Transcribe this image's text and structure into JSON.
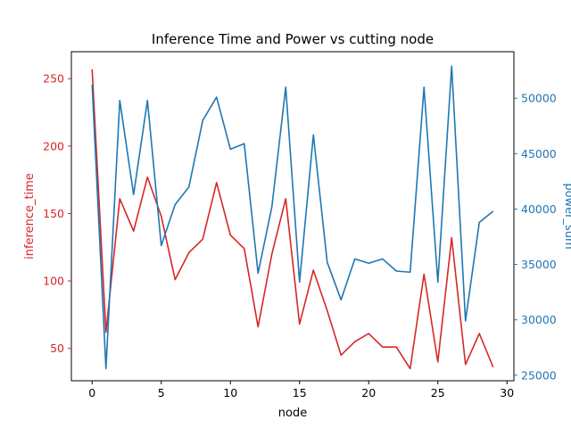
{
  "chart_data": {
    "type": "line",
    "title": "Inference Time and Power vs cutting node",
    "xlabel": "node",
    "ylabel_left": "inference_time",
    "ylabel_right": "power_sum",
    "xlim": [
      -1.5,
      30.5
    ],
    "ylim_left": [
      26,
      270
    ],
    "ylim_right": [
      24500,
      54200
    ],
    "x_ticks": [
      0,
      5,
      10,
      15,
      20,
      25,
      30
    ],
    "y_ticks_left": [
      50,
      100,
      150,
      200,
      250
    ],
    "y_ticks_right": [
      25000,
      30000,
      35000,
      40000,
      45000,
      50000
    ],
    "grid": false,
    "legend": "none",
    "x": [
      0,
      1,
      2,
      3,
      4,
      5,
      6,
      7,
      8,
      9,
      10,
      11,
      12,
      13,
      14,
      15,
      16,
      17,
      18,
      19,
      20,
      21,
      22,
      23,
      24,
      25,
      26,
      27,
      28,
      29
    ],
    "series": [
      {
        "axis": "left",
        "color": "#d62728",
        "values": [
          257,
          62,
          161,
          137,
          177,
          148,
          101,
          121,
          131,
          173,
          134,
          124,
          66,
          120,
          161,
          68,
          108,
          78,
          45,
          55,
          61,
          51,
          51,
          35,
          105,
          40,
          132,
          38,
          61,
          36
        ]
      },
      {
        "axis": "right",
        "color": "#1f77b4",
        "values": [
          51200,
          25600,
          49800,
          41300,
          49800,
          36700,
          40400,
          42000,
          48000,
          50100,
          45400,
          45900,
          34200,
          40200,
          51000,
          33400,
          46700,
          35200,
          31800,
          35500,
          35100,
          35500,
          34400,
          34300,
          51000,
          33400,
          52900,
          29900,
          38800,
          39800
        ]
      }
    ]
  }
}
